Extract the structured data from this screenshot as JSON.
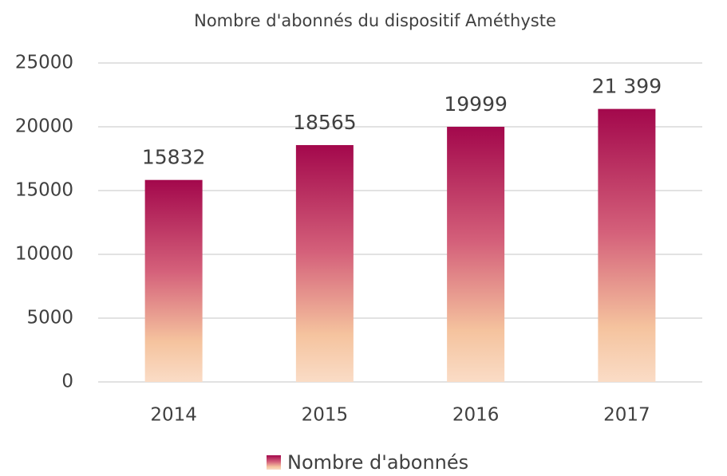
{
  "chart_data": {
    "type": "bar",
    "title": "Nombre d'abonnés du dispositif Améthyste",
    "categories": [
      "2014",
      "2015",
      "2016",
      "2017"
    ],
    "series": [
      {
        "name": "Nombre d'abonnés",
        "gradient": [
          "#a3084c",
          "#d4607a",
          "#f5c39e",
          "#fadcc6"
        ],
        "values": [
          15832,
          18565,
          19999,
          21399
        ],
        "value_labels": [
          "15832",
          "18565",
          "19999",
          "21 399"
        ]
      }
    ],
    "ylim": [
      0,
      25000
    ],
    "yticks": [
      0,
      5000,
      10000,
      15000,
      20000,
      25000
    ],
    "grid": true,
    "legend": "bottom"
  }
}
